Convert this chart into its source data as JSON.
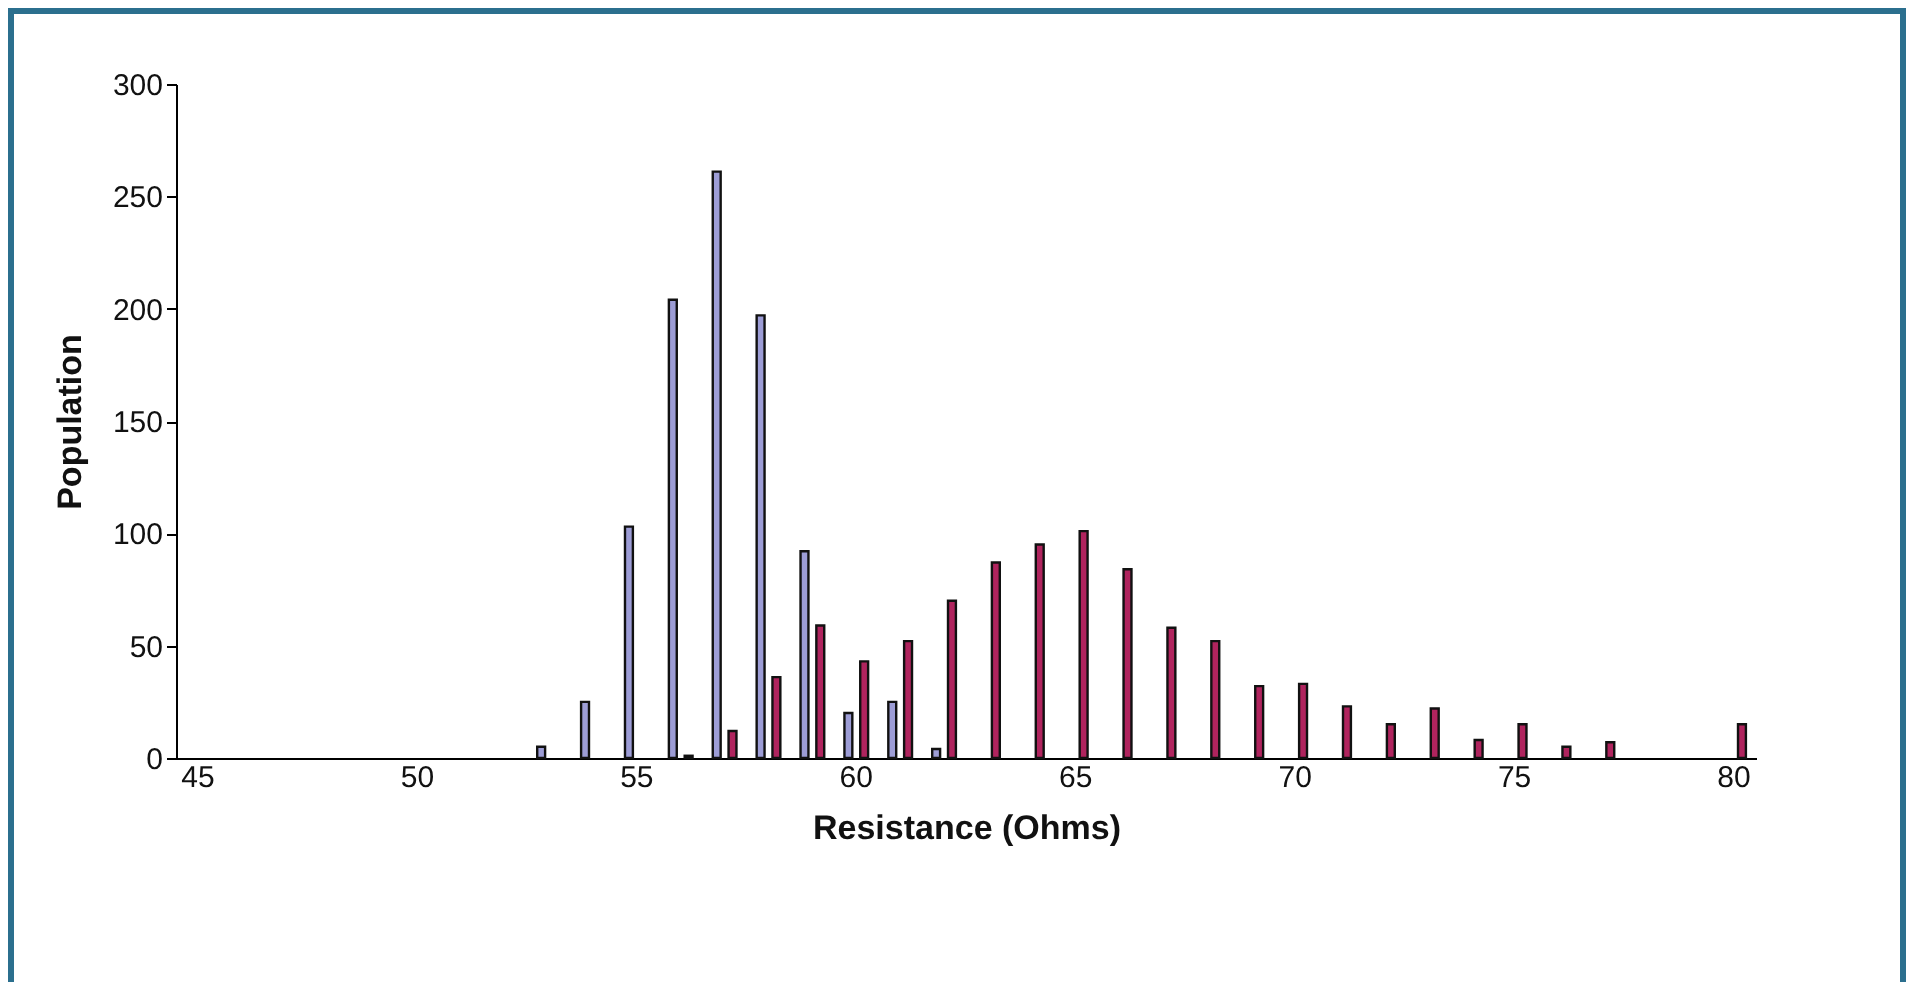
{
  "chart_data": {
    "type": "bar",
    "xlabel": "Resistance (Ohms)",
    "ylabel": "Population",
    "categories": [
      "45",
      null,
      null,
      null,
      null,
      "50",
      null,
      null,
      null,
      null,
      "55",
      null,
      null,
      null,
      null,
      "60",
      null,
      null,
      null,
      null,
      "65",
      null,
      null,
      null,
      null,
      "70",
      null,
      null,
      null,
      null,
      "75",
      null,
      null,
      null,
      null,
      "80"
    ],
    "series": [
      {
        "color": "#9d9dd6",
        "values": [
          null,
          null,
          null,
          null,
          null,
          null,
          null,
          null,
          5,
          25,
          103,
          204,
          261,
          197,
          92,
          20,
          25,
          4,
          null,
          null,
          null,
          null,
          null,
          null,
          null,
          null,
          null,
          null,
          null,
          null,
          null,
          null,
          null,
          null,
          null,
          null
        ]
      },
      {
        "color": "#b0245e",
        "values": [
          null,
          null,
          null,
          null,
          null,
          null,
          null,
          null,
          null,
          null,
          null,
          1,
          12,
          36,
          59,
          43,
          52,
          70,
          87,
          95,
          101,
          84,
          58,
          52,
          32,
          33,
          23,
          15,
          22,
          8,
          15,
          5,
          7,
          null,
          null,
          15
        ]
      }
    ],
    "ylim": [
      0,
      300
    ],
    "yticks": [
      0,
      50,
      100,
      150,
      200,
      250,
      300
    ],
    "grid": false,
    "legend": false
  }
}
